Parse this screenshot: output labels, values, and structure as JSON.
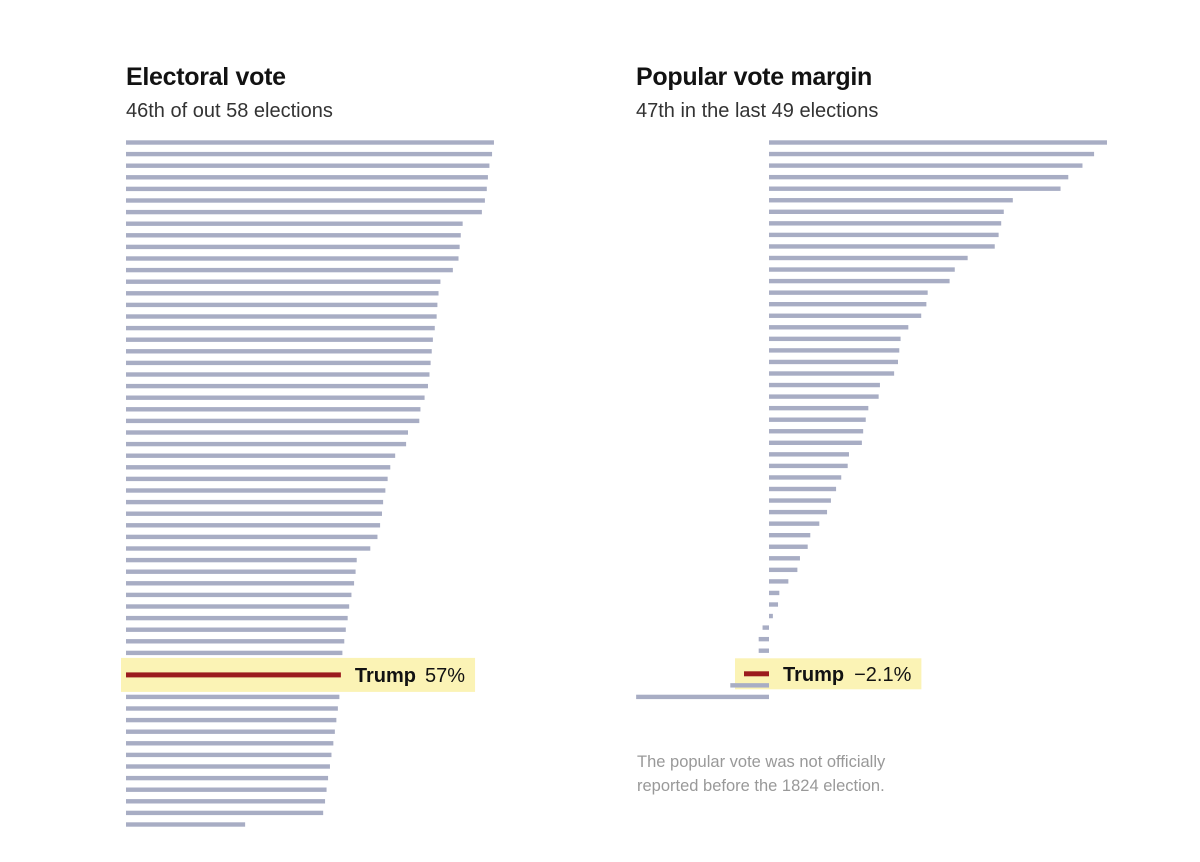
{
  "colors": {
    "bar": "#a8adc4",
    "highlight_bar": "#9b1b1e",
    "highlight_bg": "#fbf3b5"
  },
  "chart_data": [
    {
      "type": "bar",
      "orientation": "horizontal",
      "title": "Electoral vote",
      "subtitle": "46th of out 58 elections",
      "unit": "%",
      "sorted": "descending",
      "highlight": {
        "label": "Trump",
        "value_label": "57%",
        "value": 57,
        "rank": 46
      },
      "values": [
        97.6,
        97.1,
        96.4,
        96.0,
        95.7,
        95.2,
        94.4,
        89.3,
        88.8,
        88.5,
        88.2,
        86.7,
        83.4,
        82.9,
        82.6,
        82.4,
        81.9,
        81.4,
        81.1,
        80.8,
        80.5,
        80.1,
        79.2,
        78.1,
        77.8,
        74.8,
        74.3,
        71.4,
        70.1,
        69.4,
        68.8,
        68.2,
        67.9,
        67.4,
        66.7,
        64.8,
        61.2,
        60.9,
        60.5,
        59.8,
        59.2,
        58.8,
        58.3,
        57.9,
        57.4,
        57.0,
        56.6,
        56.2,
        55.8,
        55.4,
        55.0,
        54.5,
        54.1,
        53.6,
        53.2,
        52.8,
        52.3,
        31.6
      ]
    },
    {
      "type": "bar",
      "orientation": "horizontal",
      "title": "Popular vote margin",
      "subtitle": "47th in the last 49 elections",
      "unit": "percentage points",
      "sorted": "descending",
      "highlight": {
        "label": "Trump",
        "value_label": "−2.1%",
        "value": -2.1,
        "rank": 47
      },
      "values": [
        26.2,
        25.2,
        24.3,
        23.2,
        22.6,
        18.9,
        18.2,
        18.0,
        17.8,
        17.5,
        15.4,
        14.4,
        14.0,
        12.3,
        12.2,
        11.8,
        10.8,
        10.2,
        10.1,
        10.0,
        9.7,
        8.6,
        8.5,
        7.7,
        7.5,
        7.3,
        7.2,
        6.2,
        6.1,
        5.6,
        5.2,
        4.8,
        4.5,
        3.9,
        3.2,
        3.0,
        2.4,
        2.2,
        1.5,
        0.8,
        0.7,
        0.3,
        -0.5,
        -0.8,
        -0.8,
        -0.8,
        -2.1,
        -3.0,
        -10.3
      ]
    }
  ],
  "footnote": {
    "line1": "The popular vote was not officially",
    "line2": "reported before the 1824 election."
  }
}
